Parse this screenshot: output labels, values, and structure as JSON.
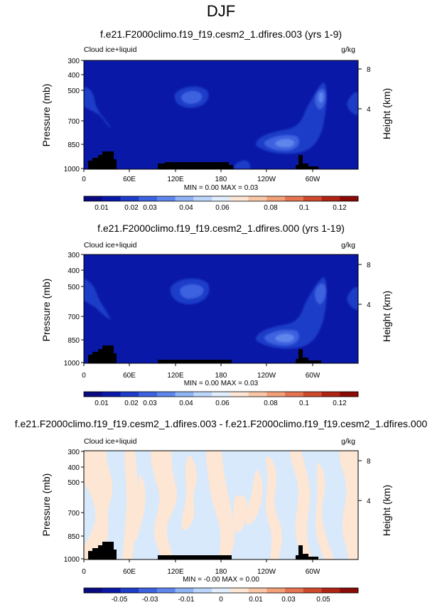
{
  "figure": {
    "title": "DJF"
  },
  "colors": {
    "background_low": "#0a18a8",
    "blob_1": "#1e3cc8",
    "blob_2": "#3c62e0",
    "blob_3": "#5f86ec",
    "blob_4": "#8fb4f4",
    "blob_5": "#bcd6fb",
    "diff_neg": "#d8e9fb",
    "diff_pos": "#fde6d4",
    "terrain": "#000000",
    "cb_abs": [
      "#0a0a80",
      "#0a18a8",
      "#1e3cc8",
      "#3c62e0",
      "#5f86ec",
      "#8fb4f4",
      "#bcd6fb",
      "#e0eefd",
      "#fde6d4",
      "#f9c7a8",
      "#f2a079",
      "#e57452",
      "#cf4a2d",
      "#b02414",
      "#8a0a05"
    ],
    "cb_diff": [
      "#0a0a80",
      "#0a18a8",
      "#1e3cc8",
      "#3c62e0",
      "#5f86ec",
      "#8fb4f4",
      "#bcd6fb",
      "#e0eefd",
      "#fde6d4",
      "#f9c7a8",
      "#f2a079",
      "#e57452",
      "#cf4a2d",
      "#b02414",
      "#8a0a05"
    ]
  },
  "chart_data": [
    {
      "type": "heatmap",
      "title": "f.e21.F2000climo.f19_f19.cesm2_1.dfires.003 (yrs 1-9)",
      "variable_label": "Cloud ice+liquid",
      "units_label": "g/kg",
      "ylabel": "Pressure (mb)",
      "ylabel_right": "Height (km)",
      "x_tick_labels": [
        "0",
        "60E",
        "120E",
        "180",
        "120W",
        "60W"
      ],
      "y_tick_labels": [
        "300",
        "400",
        "500",
        "700",
        "850",
        "1000"
      ],
      "y_right_tick_labels": [
        "8",
        "4"
      ],
      "stats": "MIN =   0.00  MAX =   0.03",
      "colorbar_labels": [
        "0.01",
        "0.02",
        "0.03",
        "0.04",
        "0.06",
        "0.08",
        "0.1",
        "0.12"
      ],
      "field_min": 0.0,
      "field_max": 0.03
    },
    {
      "type": "heatmap",
      "title": "f.e21.F2000climo.f19_f19.cesm2_1.dfires.000 (yrs 1-19)",
      "variable_label": "Cloud ice+liquid",
      "units_label": "g/kg",
      "ylabel": "Pressure (mb)",
      "ylabel_right": "Height (km)",
      "x_tick_labels": [
        "0",
        "60E",
        "120E",
        "180",
        "120W",
        "60W"
      ],
      "y_tick_labels": [
        "300",
        "400",
        "500",
        "700",
        "850",
        "1000"
      ],
      "y_right_tick_labels": [
        "8",
        "4"
      ],
      "stats": "MIN =   0.00  MAX =   0.03",
      "colorbar_labels": [
        "0.01",
        "0.02",
        "0.03",
        "0.04",
        "0.06",
        "0.08",
        "0.1",
        "0.12"
      ],
      "field_min": 0.0,
      "field_max": 0.03
    },
    {
      "type": "heatmap",
      "title": "f.e21.F2000climo.f19_f19.cesm2_1.dfires.003 - f.e21.F2000climo.f19_f19.cesm2_1.dfires.000",
      "variable_label": "Cloud ice+liquid",
      "units_label": "g/kg",
      "ylabel": "Pressure (mb)",
      "ylabel_right": "Height (km)",
      "x_tick_labels": [
        "0",
        "60E",
        "120E",
        "180",
        "120W",
        "60W"
      ],
      "y_tick_labels": [
        "300",
        "400",
        "500",
        "700",
        "850",
        "1000"
      ],
      "y_right_tick_labels": [
        "8",
        "4"
      ],
      "stats": "MIN =  -0.00  MAX =   0.00",
      "colorbar_labels": [
        "-0.05",
        "-0.03",
        "-0.01",
        "0",
        "0.01",
        "0.03",
        "0.05"
      ],
      "field_min": -0.0,
      "field_max": 0.0
    }
  ]
}
